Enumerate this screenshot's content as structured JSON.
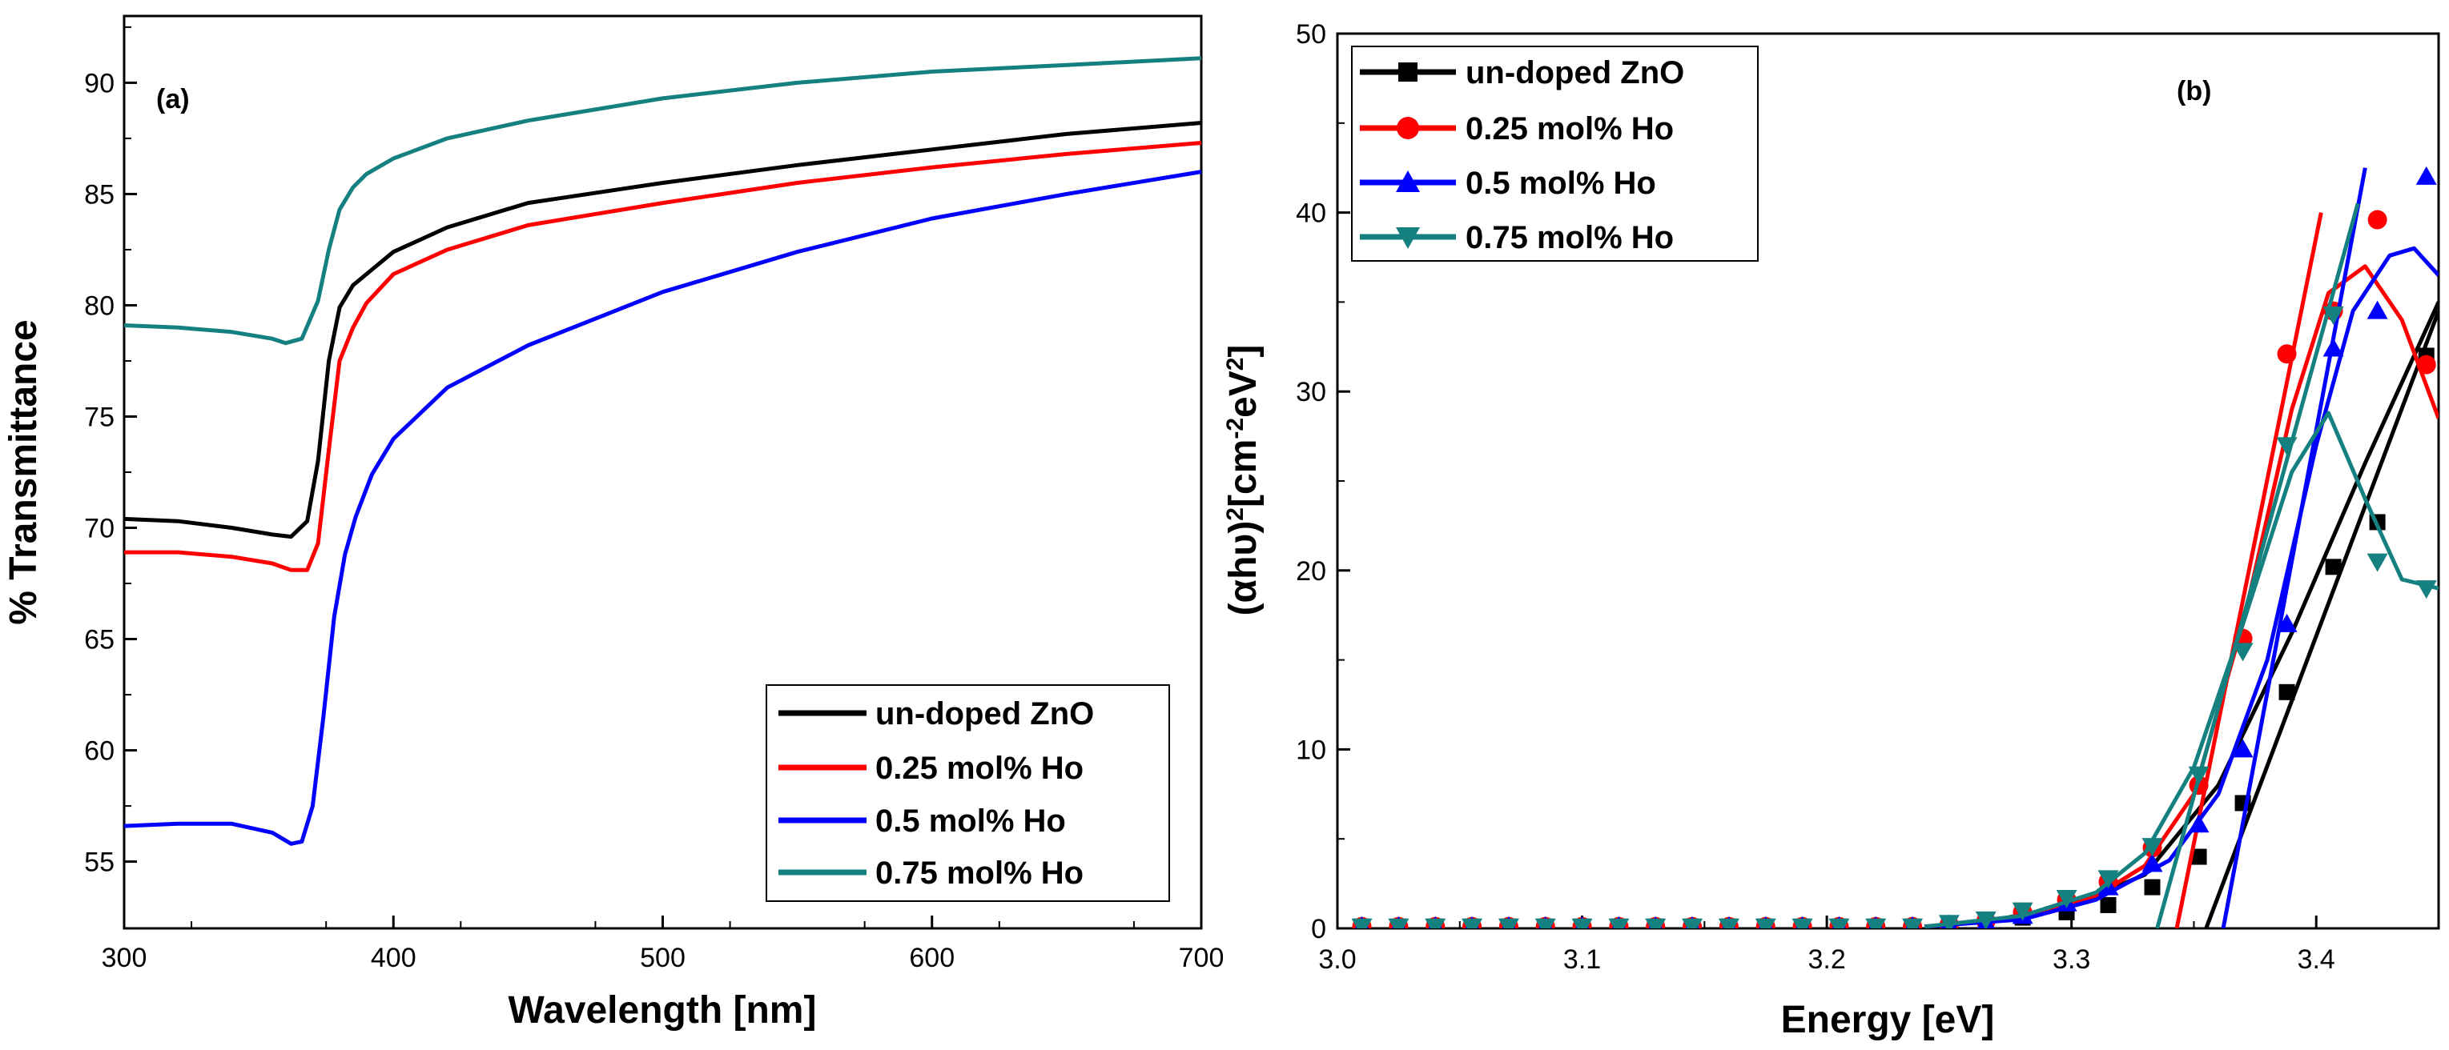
{
  "colors": {
    "undoped": "#000000",
    "ho025": "#ff0000",
    "ho05": "#0000ff",
    "ho075": "#158080"
  },
  "chart_data": [
    {
      "type": "line",
      "panel_label": "(a)",
      "xlabel": "Wavelength [nm]",
      "ylabel": "% Transmittance",
      "xlim": [
        300,
        700
      ],
      "ylim": [
        52,
        93
      ],
      "xticks": [
        "300",
        "400",
        "500",
        "600",
        "700"
      ],
      "yticks": [
        "55",
        "60",
        "65",
        "70",
        "75",
        "80",
        "85",
        "90"
      ],
      "legend_position": "bottom-right",
      "series": [
        {
          "name": "un-doped ZnO",
          "x": [
            300,
            320,
            340,
            355,
            362,
            368,
            372,
            376,
            380,
            385,
            390,
            400,
            420,
            450,
            500,
            550,
            600,
            650,
            700
          ],
          "y": [
            70.4,
            70.3,
            70.0,
            69.7,
            69.6,
            70.3,
            73.0,
            77.5,
            79.9,
            80.9,
            81.4,
            82.4,
            83.5,
            84.6,
            85.5,
            86.3,
            87.0,
            87.7,
            88.2
          ]
        },
        {
          "name": "0.25 mol% Ho",
          "x": [
            300,
            320,
            340,
            355,
            362,
            368,
            372,
            376,
            380,
            385,
            390,
            400,
            420,
            450,
            500,
            550,
            600,
            650,
            700
          ],
          "y": [
            68.9,
            68.9,
            68.7,
            68.4,
            68.1,
            68.1,
            69.3,
            73.5,
            77.5,
            79.0,
            80.1,
            81.4,
            82.5,
            83.6,
            84.6,
            85.5,
            86.2,
            86.8,
            87.3
          ]
        },
        {
          "name": "0.5 mol% Ho",
          "x": [
            300,
            320,
            340,
            355,
            362,
            366,
            370,
            374,
            378,
            382,
            386,
            392,
            400,
            420,
            450,
            500,
            550,
            600,
            650,
            700
          ],
          "y": [
            56.6,
            56.7,
            56.7,
            56.3,
            55.8,
            55.9,
            57.5,
            61.5,
            66.0,
            68.8,
            70.5,
            72.4,
            74.0,
            76.3,
            78.2,
            80.6,
            82.4,
            83.9,
            85.0,
            86.0
          ]
        },
        {
          "name": "0.75 mol% Ho",
          "x": [
            300,
            320,
            340,
            355,
            360,
            366,
            372,
            376,
            380,
            385,
            390,
            400,
            420,
            450,
            500,
            550,
            600,
            650,
            700
          ],
          "y": [
            79.1,
            79.0,
            78.8,
            78.5,
            78.3,
            78.5,
            80.2,
            82.5,
            84.3,
            85.3,
            85.9,
            86.6,
            87.5,
            88.3,
            89.3,
            90.0,
            90.5,
            90.8,
            91.1
          ]
        }
      ]
    },
    {
      "type": "scatter",
      "panel_label": "(b)",
      "xlabel": "Energy [eV]",
      "ylabel_prefix": "(αhυ)",
      "ylabel_sup1": "2",
      "ylabel_mid": "[cm",
      "ylabel_sup2": "-2",
      "ylabel_mid2": "eV",
      "ylabel_sup3": "2",
      "ylabel_suffix": "]",
      "xlim": [
        3.0,
        3.45
      ],
      "ylim": [
        0,
        50
      ],
      "xticks": [
        "3.0",
        "3.1",
        "3.2",
        "3.3",
        "3.4"
      ],
      "yticks": [
        "0",
        "10",
        "20",
        "30",
        "40",
        "50"
      ],
      "legend_position": "top-left",
      "series": [
        {
          "name": "un-doped ZnO",
          "marker": "square",
          "x": [
            3.01,
            3.025,
            3.04,
            3.055,
            3.07,
            3.085,
            3.1,
            3.115,
            3.13,
            3.145,
            3.16,
            3.175,
            3.19,
            3.205,
            3.22,
            3.235,
            3.25,
            3.265,
            3.28,
            3.298,
            3.315,
            3.333,
            3.352,
            3.37,
            3.388,
            3.407,
            3.425,
            3.445
          ],
          "y": [
            0.1,
            0.1,
            0.1,
            0.1,
            0.1,
            0.1,
            0.1,
            0.1,
            0.1,
            0.1,
            0.1,
            0.1,
            0.1,
            0.1,
            0.1,
            0.1,
            0.2,
            0.3,
            0.6,
            0.9,
            1.3,
            2.3,
            4.0,
            7.0,
            13.2,
            20.2,
            22.7,
            32.0
          ],
          "fit_x": [
            3.24,
            3.27,
            3.3,
            3.33,
            3.36,
            3.39,
            3.42,
            3.45
          ],
          "fit_y": [
            0.1,
            0.5,
            1.3,
            3.0,
            8.0,
            16.5,
            26.0,
            35.0
          ],
          "tangent": [
            [
              3.355,
              0
            ],
            [
              3.45,
              34.5
            ]
          ]
        },
        {
          "name": "0.25 mol% Ho",
          "marker": "circle",
          "x": [
            3.01,
            3.025,
            3.04,
            3.055,
            3.07,
            3.085,
            3.1,
            3.115,
            3.13,
            3.145,
            3.16,
            3.175,
            3.19,
            3.205,
            3.22,
            3.235,
            3.25,
            3.265,
            3.28,
            3.298,
            3.315,
            3.333,
            3.352,
            3.37,
            3.388,
            3.407,
            3.425,
            3.445
          ],
          "y": [
            0.1,
            0.1,
            0.1,
            0.1,
            0.1,
            0.1,
            0.1,
            0.1,
            0.1,
            0.1,
            0.1,
            0.1,
            0.1,
            0.1,
            0.1,
            0.1,
            0.2,
            0.4,
            0.9,
            1.6,
            2.6,
            4.5,
            8.0,
            16.2,
            32.1,
            34.5,
            39.6,
            31.5
          ],
          "fit_x": [
            3.24,
            3.28,
            3.31,
            3.33,
            3.35,
            3.37,
            3.39,
            3.405,
            3.42,
            3.435,
            3.45
          ],
          "fit_y": [
            0.1,
            0.6,
            1.8,
            3.5,
            7.5,
            17.0,
            29.0,
            35.5,
            37.0,
            34.0,
            28.5
          ],
          "tangent": [
            [
              3.343,
              0
            ],
            [
              3.402,
              40
            ]
          ]
        },
        {
          "name": "0.5 mol% Ho",
          "marker": "triangle-up",
          "x": [
            3.01,
            3.025,
            3.04,
            3.055,
            3.07,
            3.085,
            3.1,
            3.115,
            3.13,
            3.145,
            3.16,
            3.175,
            3.19,
            3.205,
            3.22,
            3.235,
            3.25,
            3.265,
            3.28,
            3.298,
            3.315,
            3.333,
            3.352,
            3.37,
            3.388,
            3.407,
            3.425,
            3.445
          ],
          "y": [
            0.1,
            0.1,
            0.1,
            0.1,
            0.1,
            0.1,
            0.1,
            0.1,
            0.1,
            0.1,
            0.1,
            0.1,
            0.1,
            0.1,
            0.1,
            0.1,
            0.2,
            0.3,
            0.7,
            1.4,
            2.3,
            3.6,
            5.8,
            10.0,
            17.0,
            32.4,
            34.5,
            42.0
          ],
          "fit_x": [
            3.24,
            3.28,
            3.31,
            3.34,
            3.36,
            3.38,
            3.4,
            3.415,
            3.43,
            3.44,
            3.45
          ],
          "fit_y": [
            0.1,
            0.5,
            1.6,
            3.8,
            7.5,
            15.0,
            27.0,
            34.5,
            37.6,
            38.0,
            36.5
          ],
          "tangent": [
            [
              3.362,
              0
            ],
            [
              3.42,
              42.5
            ]
          ]
        },
        {
          "name": "0.75 mol% Ho",
          "marker": "triangle-down",
          "x": [
            3.01,
            3.025,
            3.04,
            3.055,
            3.07,
            3.085,
            3.1,
            3.115,
            3.13,
            3.145,
            3.16,
            3.175,
            3.19,
            3.205,
            3.22,
            3.235,
            3.25,
            3.265,
            3.28,
            3.298,
            3.315,
            3.333,
            3.352,
            3.37,
            3.388,
            3.407,
            3.425,
            3.445
          ],
          "y": [
            0.1,
            0.1,
            0.1,
            0.1,
            0.1,
            0.1,
            0.1,
            0.1,
            0.1,
            0.1,
            0.1,
            0.1,
            0.1,
            0.1,
            0.1,
            0.1,
            0.3,
            0.5,
            1.0,
            1.7,
            2.8,
            4.6,
            8.6,
            15.5,
            27.0,
            34.3,
            20.5,
            19.0
          ],
          "fit_x": [
            3.24,
            3.28,
            3.31,
            3.33,
            3.35,
            3.37,
            3.39,
            3.405,
            3.42,
            3.435,
            3.45
          ],
          "fit_y": [
            0.1,
            0.7,
            2.0,
            4.2,
            9.0,
            17.0,
            25.5,
            28.8,
            24.0,
            19.5,
            19.0
          ],
          "tangent": [
            [
              3.335,
              0
            ],
            [
              3.417,
              40.5
            ]
          ]
        }
      ]
    }
  ]
}
